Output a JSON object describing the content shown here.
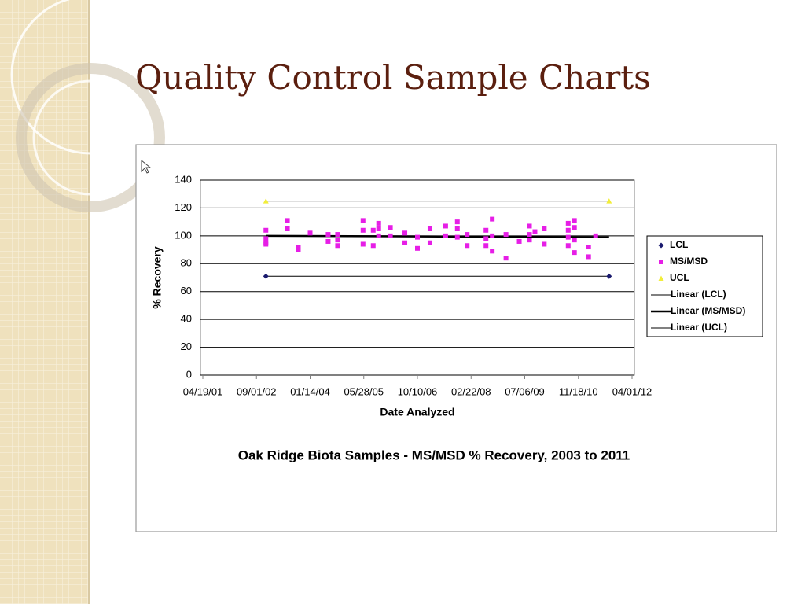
{
  "slide_title": "Quality Control Sample Charts",
  "chart_data": {
    "type": "scatter",
    "title": "Oak Ridge Biota Samples - MS/MSD % Recovery, 2003 to 2011",
    "x_label": "Date Analyzed",
    "y_label": "% Recovery",
    "xlim": [
      "04/19/01",
      "04/01/12"
    ],
    "xticks": [
      "04/19/01",
      "09/01/02",
      "01/14/04",
      "05/28/05",
      "10/10/06",
      "02/22/08",
      "07/06/09",
      "11/18/10",
      "04/01/12"
    ],
    "ylim": [
      0,
      140
    ],
    "yticks": [
      0,
      20,
      40,
      60,
      80,
      100,
      120,
      140
    ],
    "grid": true,
    "legend": "right",
    "series": [
      {
        "name": "LCL",
        "color": "#1a1a6e",
        "mode": "markers",
        "marker": "diamond",
        "x": [
          "11/28/02",
          "08/31/11"
        ],
        "values": [
          71,
          71
        ]
      },
      {
        "name": "MS/MSD",
        "color": "#e61ee6",
        "mode": "markers",
        "marker": "square",
        "x": [
          "11/28/02",
          "11/28/02",
          "11/28/02",
          "11/28/02",
          "06/16/03",
          "06/16/03",
          "09/26/03",
          "09/26/03",
          "01/14/04",
          "06/30/04",
          "06/30/04",
          "09/26/04",
          "09/26/04",
          "09/26/04",
          "05/21/05",
          "05/21/05",
          "05/21/05",
          "08/24/05",
          "08/24/05",
          "10/14/05",
          "10/14/05",
          "10/14/05",
          "01/31/06",
          "01/31/06",
          "06/15/06",
          "06/15/06",
          "10/10/06",
          "10/10/06",
          "02/04/07",
          "02/04/07",
          "06/30/07",
          "06/30/07",
          "10/17/07",
          "10/17/07",
          "10/17/07",
          "01/16/08",
          "01/16/08",
          "07/10/08",
          "07/10/08",
          "07/10/08",
          "09/06/08",
          "09/06/08",
          "09/06/08",
          "01/12/09",
          "01/12/09",
          "05/16/09",
          "08/19/09",
          "08/19/09",
          "08/19/09",
          "10/09/09",
          "01/04/10",
          "01/04/10",
          "08/15/10",
          "08/15/10",
          "08/15/10",
          "08/15/10",
          "10/12/10",
          "10/12/10",
          "10/12/10",
          "10/12/10",
          "02/21/11",
          "02/21/11",
          "04/28/11"
        ],
        "values": [
          104,
          98,
          95,
          94,
          111,
          105,
          92,
          90,
          102,
          101,
          96,
          101,
          97,
          93,
          111,
          104,
          94,
          104,
          93,
          109,
          105,
          100,
          106,
          100,
          102,
          95,
          99,
          91,
          105,
          95,
          107,
          100,
          110,
          105,
          99,
          101,
          93,
          104,
          98,
          93,
          112,
          100,
          89,
          101,
          84,
          96,
          107,
          101,
          97,
          103,
          105,
          94,
          109,
          104,
          99,
          93,
          111,
          106,
          97,
          88,
          92,
          85,
          100
        ]
      },
      {
        "name": "UCL",
        "color": "#f2ee3a",
        "mode": "markers",
        "marker": "triangle",
        "x": [
          "11/28/02",
          "08/31/11"
        ],
        "values": [
          125,
          125
        ]
      },
      {
        "name": "Linear (LCL)",
        "color": "#000000",
        "mode": "line",
        "line_width": 1,
        "x": [
          "11/28/02",
          "08/31/11"
        ],
        "values": [
          71,
          71
        ]
      },
      {
        "name": "Linear (MS/MSD)",
        "color": "#000000",
        "mode": "line",
        "line_width": 2.5,
        "x": [
          "11/28/02",
          "08/31/11"
        ],
        "values": [
          100,
          99
        ]
      },
      {
        "name": "Linear (UCL)",
        "color": "#000000",
        "mode": "line",
        "line_width": 1,
        "x": [
          "11/28/02",
          "08/31/11"
        ],
        "values": [
          125,
          125
        ]
      }
    ]
  }
}
